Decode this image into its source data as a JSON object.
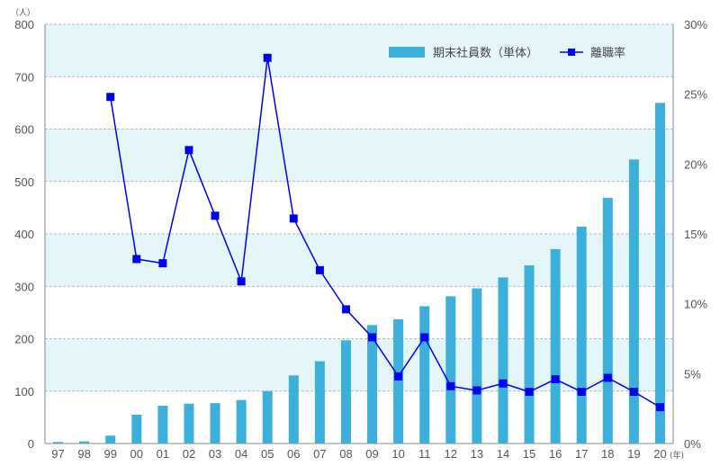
{
  "chart_data": {
    "type": "bar+line",
    "categories": [
      "97",
      "98",
      "99",
      "00",
      "01",
      "02",
      "03",
      "04",
      "05",
      "06",
      "07",
      "08",
      "09",
      "10",
      "11",
      "12",
      "13",
      "14",
      "15",
      "16",
      "17",
      "18",
      "19",
      "20"
    ],
    "series": [
      {
        "name": "期末社員数（単体）",
        "type": "bar",
        "axis": "left",
        "values": [
          3,
          4,
          15,
          55,
          72,
          76,
          77,
          83,
          100,
          130,
          157,
          197,
          226,
          237,
          262,
          281,
          296,
          317,
          340,
          371,
          414,
          469,
          542,
          650
        ]
      },
      {
        "name": "離職率",
        "type": "line",
        "axis": "right",
        "values": [
          null,
          null,
          24.8,
          13.2,
          12.9,
          21.0,
          16.3,
          11.6,
          27.6,
          16.1,
          12.4,
          9.6,
          7.6,
          4.8,
          7.6,
          4.1,
          3.8,
          4.3,
          3.7,
          4.6,
          3.7,
          4.7,
          3.7,
          2.6
        ]
      }
    ],
    "left_axis": {
      "unit": "（人）",
      "ticks": [
        "0",
        "100",
        "200",
        "300",
        "400",
        "500",
        "600",
        "700",
        "800"
      ],
      "ylim": [
        0,
        800
      ]
    },
    "right_axis": {
      "ticks": [
        "0%",
        "5%",
        "10%",
        "15%",
        "20%",
        "25%",
        "30%"
      ],
      "ylim": [
        0,
        30
      ]
    },
    "x_unit": "(年)",
    "legend_position": "top-right",
    "grid": "horizontal-dashed",
    "colors": {
      "bar": "#3cb0da",
      "line": "#0000ee",
      "band": "#e5f6fb"
    }
  }
}
